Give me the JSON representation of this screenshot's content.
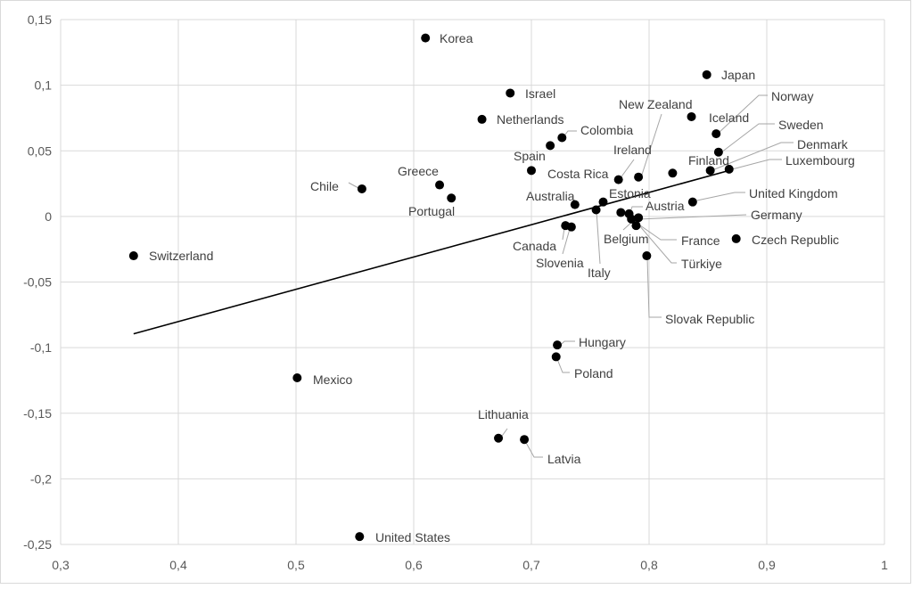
{
  "chart_data": {
    "type": "scatter",
    "title": "",
    "xlabel": "",
    "ylabel": "",
    "xlim": [
      0.3,
      1.0
    ],
    "ylim": [
      -0.25,
      0.15
    ],
    "x_ticks": [
      {
        "value": 0.3,
        "label": "0,3"
      },
      {
        "value": 0.4,
        "label": "0,4"
      },
      {
        "value": 0.5,
        "label": "0,5"
      },
      {
        "value": 0.6,
        "label": "0,6"
      },
      {
        "value": 0.7,
        "label": "0,7"
      },
      {
        "value": 0.8,
        "label": "0,8"
      },
      {
        "value": 0.9,
        "label": "0,9"
      },
      {
        "value": 1.0,
        "label": "1"
      }
    ],
    "y_ticks": [
      {
        "value": 0.15,
        "label": "0,15"
      },
      {
        "value": 0.1,
        "label": "0,1"
      },
      {
        "value": 0.05,
        "label": "0,05"
      },
      {
        "value": 0.0,
        "label": "0"
      },
      {
        "value": -0.05,
        "label": "-0,05"
      },
      {
        "value": -0.1,
        "label": "-0,1"
      },
      {
        "value": -0.15,
        "label": "-0,15"
      },
      {
        "value": -0.2,
        "label": "-0,2"
      },
      {
        "value": -0.25,
        "label": "-0,25"
      }
    ],
    "grid": true,
    "legend": "none",
    "trendline": {
      "x": [
        0.362,
        0.87
      ],
      "y": [
        -0.0895,
        0.0355
      ]
    },
    "points": [
      {
        "name": "Korea",
        "x": 0.61,
        "y": 0.136
      },
      {
        "name": "Japan",
        "x": 0.849,
        "y": 0.108
      },
      {
        "name": "Israel",
        "x": 0.682,
        "y": 0.094
      },
      {
        "name": "Norway",
        "x": 0.857,
        "y": 0.063
      },
      {
        "name": "Iceland",
        "x": 0.836,
        "y": 0.076
      },
      {
        "name": "Netherlands",
        "x": 0.658,
        "y": 0.074
      },
      {
        "name": "New Zealand",
        "x": 0.791,
        "y": 0.03
      },
      {
        "name": "Colombia",
        "x": 0.726,
        "y": 0.06
      },
      {
        "name": "Sweden",
        "x": 0.859,
        "y": 0.049
      },
      {
        "name": "Spain",
        "x": 0.716,
        "y": 0.054
      },
      {
        "name": "Ireland",
        "x": 0.774,
        "y": 0.028
      },
      {
        "name": "Denmark",
        "x": 0.852,
        "y": 0.035
      },
      {
        "name": "Finland",
        "x": 0.82,
        "y": 0.033
      },
      {
        "name": "Luxembourg",
        "x": 0.868,
        "y": 0.036
      },
      {
        "name": "Costa Rica",
        "x": 0.7,
        "y": 0.035
      },
      {
        "name": "Greece",
        "x": 0.622,
        "y": 0.024
      },
      {
        "name": "Chile",
        "x": 0.556,
        "y": 0.021
      },
      {
        "name": "Portugal",
        "x": 0.632,
        "y": 0.014
      },
      {
        "name": "Estonia",
        "x": 0.761,
        "y": 0.011
      },
      {
        "name": "United Kingdom",
        "x": 0.837,
        "y": 0.011
      },
      {
        "name": "Australia",
        "x": 0.737,
        "y": 0.009
      },
      {
        "name": "Austria",
        "x": 0.783,
        "y": 0.002
      },
      {
        "name": "Germany",
        "x": 0.791,
        "y": -0.001
      },
      {
        "name": "Belgium",
        "x": 0.785,
        "y": -0.002
      },
      {
        "name": "France",
        "x": 0.789,
        "y": -0.007
      },
      {
        "name": "Italy",
        "x": 0.755,
        "y": 0.005
      },
      {
        "name": "Slovenia",
        "x": 0.734,
        "y": -0.008
      },
      {
        "name": "Canada",
        "x": 0.729,
        "y": -0.007
      },
      {
        "name": "Türkiye",
        "x": 0.798,
        "y": -0.03
      },
      {
        "name": "Czech Republic",
        "x": 0.874,
        "y": -0.017
      },
      {
        "name": "Switzerland",
        "x": 0.362,
        "y": -0.03
      },
      {
        "name": "Slovak Republic",
        "x": 0.776,
        "y": 0.003
      },
      {
        "name": "Hungary",
        "x": 0.722,
        "y": -0.098
      },
      {
        "name": "Poland",
        "x": 0.721,
        "y": -0.107
      },
      {
        "name": "Mexico",
        "x": 0.501,
        "y": -0.123
      },
      {
        "name": "Lithuania",
        "x": 0.672,
        "y": -0.169
      },
      {
        "name": "Latvia",
        "x": 0.694,
        "y": -0.17
      },
      {
        "name": "United States",
        "x": 0.554,
        "y": -0.244
      }
    ]
  }
}
